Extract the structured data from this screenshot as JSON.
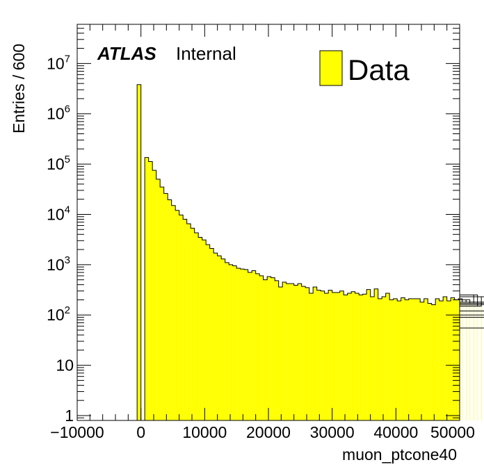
{
  "chart_data": {
    "type": "bar",
    "histogram": true,
    "ylabel": "Entries / 600",
    "xlabel": "muon_ptcone40",
    "label_bold": "ATLAS",
    "label_plain": "Internal",
    "xlim": [
      -10000,
      50000
    ],
    "ylim": [
      0.8,
      60000000
    ],
    "log_y": true,
    "grid": false,
    "legend": {
      "position": "top-right",
      "entries": [
        "Data"
      ]
    },
    "colors": {
      "fill": "#ffff00",
      "line": "#000000",
      "frame": "#000000"
    },
    "x_ticks": [
      -10000,
      0,
      10000,
      20000,
      30000,
      40000,
      50000
    ],
    "x_tick_labels": [
      "−10000",
      "0",
      "10000",
      "20000",
      "30000",
      "40000",
      "50000"
    ],
    "y_ticks": [
      {
        "value": 1,
        "base": "1",
        "exp": ""
      },
      {
        "value": 10,
        "base": "10",
        "exp": ""
      },
      {
        "value": 100,
        "base": "10",
        "exp": "2"
      },
      {
        "value": 1000,
        "base": "10",
        "exp": "3"
      },
      {
        "value": 10000,
        "base": "10",
        "exp": "4"
      },
      {
        "value": 100000,
        "base": "10",
        "exp": "5"
      },
      {
        "value": 1000000,
        "base": "10",
        "exp": "6"
      },
      {
        "value": 10000000,
        "base": "10",
        "exp": "7"
      }
    ],
    "bin_width": 600,
    "bin_start": -600,
    "values": [
      3800000,
      0,
      135000,
      112000,
      75000,
      50000,
      35000,
      26000,
      19500,
      15000,
      12000,
      9700,
      8000,
      6500,
      5300,
      4300,
      3500,
      3100,
      2500,
      2100,
      1700,
      1500,
      1300,
      1100,
      1000,
      950,
      850,
      820,
      800,
      700,
      760,
      660,
      600,
      500,
      580,
      550,
      480,
      360,
      450,
      420,
      420,
      390,
      420,
      370,
      350,
      270,
      360,
      310,
      300,
      270,
      310,
      280,
      280,
      300,
      250,
      270,
      290,
      270,
      250,
      260,
      320,
      230,
      330,
      210,
      230,
      270,
      200,
      210,
      190,
      220,
      200,
      210,
      210,
      210,
      180,
      210,
      170,
      160,
      210,
      190,
      230,
      190,
      220,
      200,
      210,
      180,
      200,
      170,
      250,
      150,
      230,
      100,
      160,
      180,
      170,
      180,
      120,
      170,
      160,
      100,
      55,
      55,
      120,
      90,
      90,
      90,
      90,
      90
    ]
  }
}
